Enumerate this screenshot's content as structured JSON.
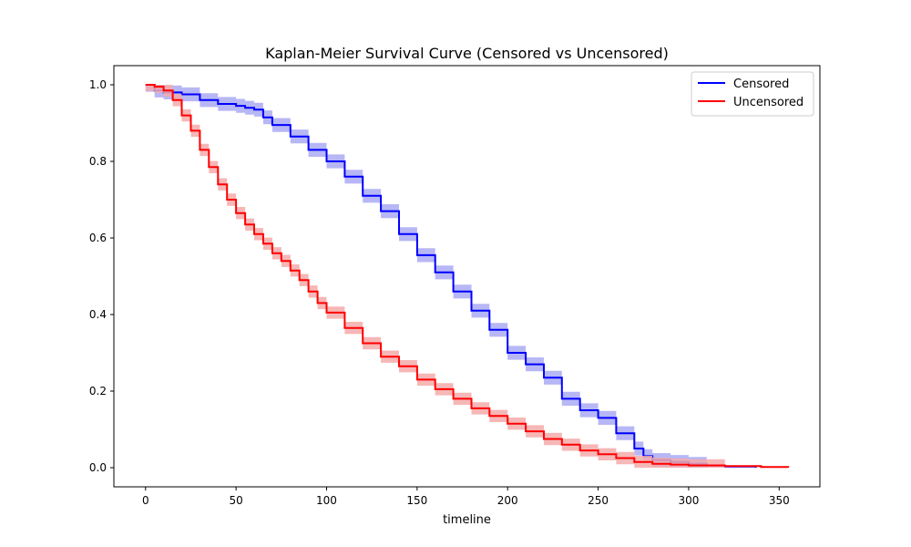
{
  "chart_data": {
    "type": "line",
    "title": "Kaplan-Meier Survival Curve (Censored vs Uncensored)",
    "xlabel": "timeline",
    "ylabel": "",
    "xlim": [
      -17.5,
      372.5
    ],
    "ylim": [
      -0.05,
      1.05
    ],
    "xticks": [
      0,
      50,
      100,
      150,
      200,
      250,
      300,
      350
    ],
    "xtick_labels": [
      "0",
      "50",
      "100",
      "150",
      "200",
      "250",
      "300",
      "350"
    ],
    "yticks": [
      0.0,
      0.2,
      0.4,
      0.6,
      0.8,
      1.0
    ],
    "ytick_labels": [
      "0.0",
      "0.2",
      "0.4",
      "0.6",
      "0.8",
      "1.0"
    ],
    "grid": false,
    "legend_position": "upper-right",
    "series": [
      {
        "name": "Censored",
        "color": "#0000ff",
        "band_color": "#aaaaf5",
        "ci_halfwidth": 0.018,
        "x": [
          0,
          5,
          10,
          20,
          30,
          40,
          50,
          55,
          60,
          65,
          70,
          80,
          90,
          100,
          110,
          120,
          130,
          140,
          150,
          160,
          170,
          180,
          190,
          200,
          210,
          220,
          230,
          240,
          250,
          260,
          270,
          275,
          280,
          290,
          300,
          310,
          320,
          337
        ],
        "y": [
          1.0,
          0.985,
          0.98,
          0.975,
          0.96,
          0.95,
          0.945,
          0.94,
          0.935,
          0.915,
          0.895,
          0.865,
          0.83,
          0.8,
          0.76,
          0.71,
          0.67,
          0.61,
          0.555,
          0.51,
          0.46,
          0.41,
          0.36,
          0.3,
          0.27,
          0.235,
          0.18,
          0.15,
          0.13,
          0.09,
          0.05,
          0.03,
          0.02,
          0.015,
          0.01,
          0.005,
          0.003,
          0.0
        ]
      },
      {
        "name": "Uncensored",
        "color": "#ff0000",
        "band_color": "#f5aaaa",
        "ci_halfwidth": 0.016,
        "x": [
          0,
          5,
          10,
          15,
          20,
          25,
          30,
          35,
          40,
          45,
          50,
          55,
          60,
          65,
          70,
          75,
          80,
          85,
          90,
          95,
          100,
          110,
          120,
          130,
          140,
          150,
          160,
          170,
          180,
          190,
          200,
          210,
          220,
          230,
          240,
          250,
          260,
          270,
          280,
          290,
          300,
          320,
          340,
          355
        ],
        "y": [
          1.0,
          0.995,
          0.985,
          0.96,
          0.92,
          0.88,
          0.83,
          0.785,
          0.74,
          0.7,
          0.665,
          0.635,
          0.61,
          0.585,
          0.56,
          0.54,
          0.515,
          0.49,
          0.46,
          0.43,
          0.405,
          0.365,
          0.325,
          0.29,
          0.265,
          0.23,
          0.205,
          0.18,
          0.155,
          0.135,
          0.115,
          0.095,
          0.075,
          0.06,
          0.045,
          0.035,
          0.025,
          0.015,
          0.01,
          0.008,
          0.006,
          0.004,
          0.002,
          0.0
        ]
      }
    ]
  }
}
